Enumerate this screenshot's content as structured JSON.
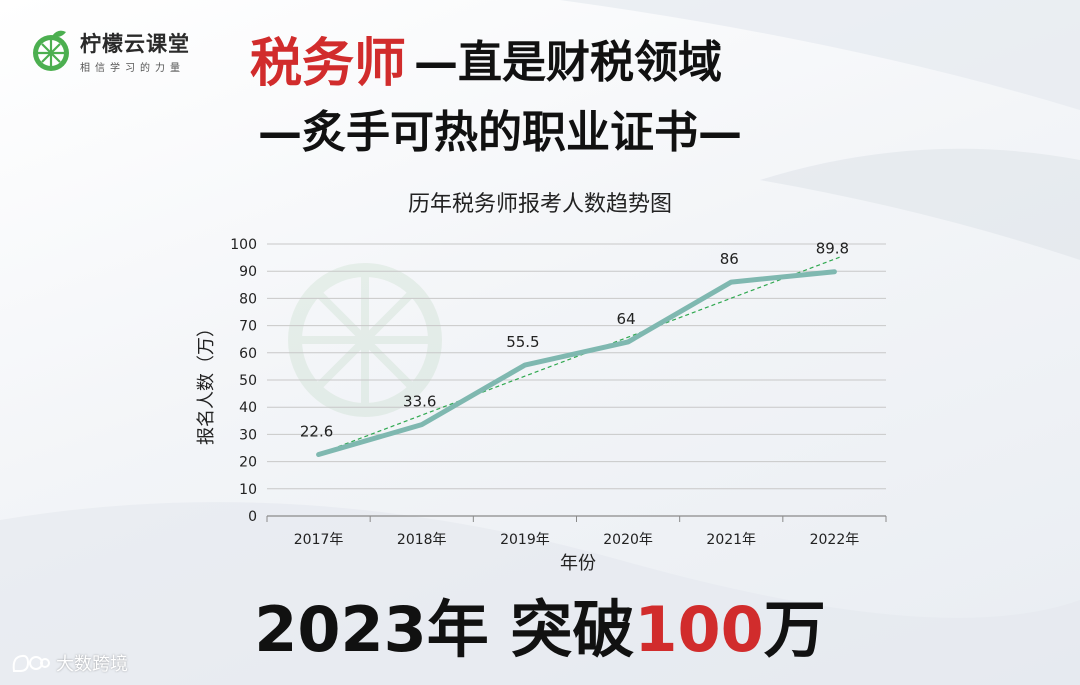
{
  "logo": {
    "name": "柠檬云课堂",
    "slogan": "相信学习的力量"
  },
  "headline": {
    "red_part": "税务师",
    "line1_rest": "—直是财税领域",
    "line2": "—炙手可热的职业证书—"
  },
  "bottom": {
    "prefix": "2023年  突破",
    "highlight": "100",
    "suffix": "万"
  },
  "source_watermark": "大数跨境",
  "colors": {
    "accent_red": "#d12c2c",
    "series_line": "#7fb8b0",
    "trendline": "#2fa84f"
  },
  "chart_data": {
    "type": "line",
    "title": "历年税务师报考人数趋势图",
    "xlabel": "年份",
    "ylabel": "报名人数（万）",
    "categories": [
      "2017年",
      "2018年",
      "2019年",
      "2020年",
      "2021年",
      "2022年"
    ],
    "series": [
      {
        "values": [
          22.6,
          33.6,
          55.5,
          64,
          86,
          89.8
        ]
      }
    ],
    "data_labels": [
      "22.6",
      "33.6",
      "55.5",
      "64",
      "86",
      "89.8"
    ],
    "yticks": [
      0,
      10,
      20,
      30,
      40,
      50,
      60,
      70,
      80,
      90,
      100
    ],
    "ylim": [
      0,
      100
    ],
    "grid": true,
    "trendline": "linear, dashed"
  }
}
